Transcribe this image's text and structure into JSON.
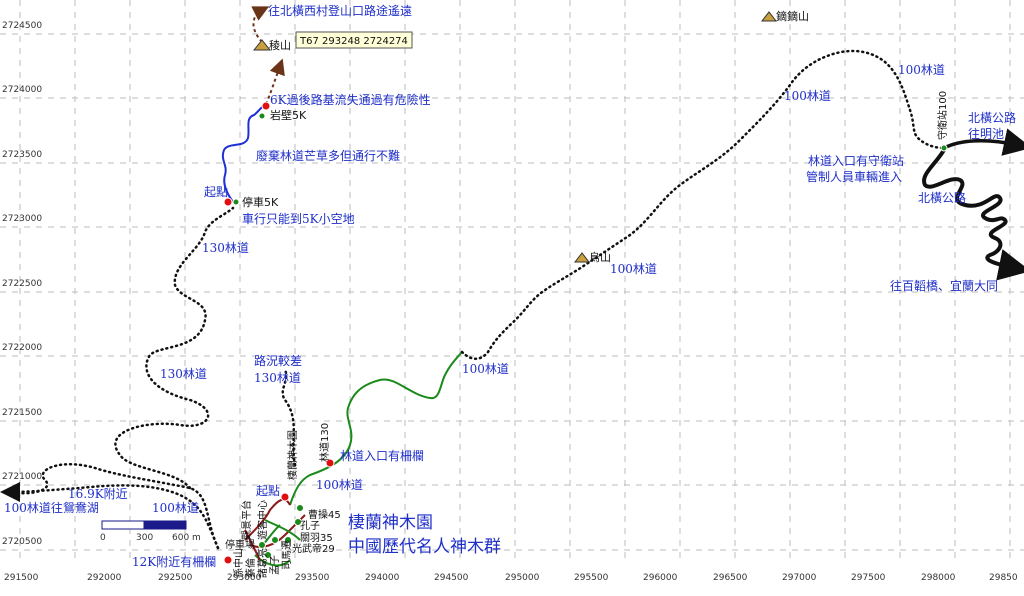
{
  "grid": {
    "x_labels": [
      "291500",
      "292000",
      "292500",
      "293000",
      "293500",
      "294000",
      "294500",
      "295000",
      "295500",
      "296000",
      "296500",
      "297000",
      "297500",
      "298000",
      "29850"
    ],
    "y_labels": [
      "2724500",
      "2724000",
      "2723500",
      "2723000",
      "2722500",
      "2722000",
      "2721500",
      "2721000",
      "2720500"
    ]
  },
  "tooltip": "T67  293248  2724274",
  "peaks": {
    "lengshan": "稜山",
    "xiaoxiaoshan": "鏑鏑山",
    "wushan": "烏山"
  },
  "points": {
    "yanbi": "岩壁5K",
    "tingche": "停車5K",
    "qidian_top": "起點",
    "qidian_bottom": "起點",
    "shouwei": "守衛站100"
  },
  "notes": {
    "to_beiheng": "往北橫西村登山口路途遙遠",
    "k6_warning": "6K過後路基流失通過有危險性",
    "abandoned": "廢棄林道芒草多但通行不難",
    "car_5k": "車行只能到5K小空地",
    "road_poor": "路況較差",
    "forest_gate": "林道入口有柵欄",
    "k12_gate": "12K附近有柵欄",
    "k169": "16.9K附近",
    "to_yuanyang": "100林道往鴛鴦湖",
    "guard_line1": "林道入口有守衛站",
    "guard_line2": "管制人員車輛進入",
    "beiheng_mingchi1": "北橫公路",
    "beiheng_mingchi2": "往明池",
    "beiheng": "北橫公路",
    "to_yilan": "往百韜橋、宜蘭大同"
  },
  "roads": {
    "r100_a": "100林道",
    "r100_b": "100林道",
    "r100_c": "100林道",
    "r100_d": "100林道",
    "r100_e": "100林道",
    "r100_f": "100林道",
    "r130_a": "130林道",
    "r130_b": "130林道",
    "r130_c": "130林道",
    "r130_d": "林道130"
  },
  "park": {
    "title1": "棲蘭神木園",
    "title2": "中國歷代名人神木群",
    "labels": [
      "觀景平台",
      "棲蘭神木園",
      "停車場",
      "遊客中心",
      "曹操45",
      "孔子",
      "關羽35",
      "光武帝29",
      "司馬遷",
      "孟子",
      "諸葛亮",
      "蔡倫",
      "孫中山"
    ]
  },
  "scale_bar": {
    "labels": [
      "0",
      "300",
      "600 m"
    ]
  },
  "colors": {
    "trail_black": "#111111",
    "trail_blue": "#1f2fd6",
    "trail_green": "#1a8a1a",
    "trail_red": "#8b1a1a",
    "arrow_brown": "#6b3418",
    "point_red": "#e01010",
    "text_blue": "#1f2fc8"
  }
}
